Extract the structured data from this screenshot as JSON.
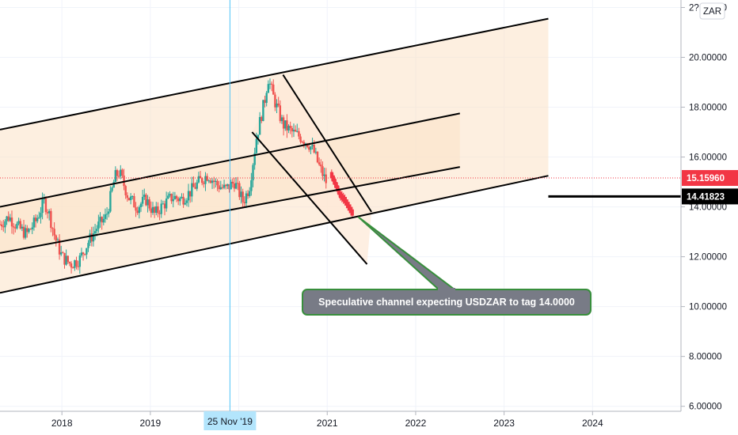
{
  "chart_data": {
    "type": "candlestick",
    "symbol": "USDZAR",
    "currency_label": "ZAR",
    "price_scale": {
      "ticks": [
        "2?.00000",
        "20.00000",
        "18.00000",
        "16.00000",
        "14.00000",
        "12.00000",
        "10.00000",
        "8.00000",
        "6.00000"
      ],
      "tick_values": [
        22,
        20,
        18,
        16,
        14,
        12,
        10,
        8,
        6
      ],
      "ylim": [
        5.8,
        22.3
      ]
    },
    "time_scale": {
      "ticks": [
        "2018",
        "2019",
        "2021",
        "2022",
        "2023",
        "2024"
      ],
      "tick_values": [
        2018.0,
        2019.0,
        2021.0,
        2022.0,
        2023.0,
        2024.0
      ],
      "xlim": [
        2017.3,
        2025.0
      ]
    },
    "last_price": {
      "label": "15.15960",
      "value": 15.1596,
      "color": "#f23645"
    },
    "marked_level": {
      "label": "14.41823",
      "value": 14.41823,
      "from": 2023.5,
      "color": "#000000"
    },
    "crosshair": {
      "label": "25 Nov '19",
      "x": 2019.9,
      "color": "#4fc3f7"
    },
    "channels": [
      {
        "name": "outer",
        "x1": 2017.3,
        "y1_lower": 10.55,
        "y1_upper": 17.1,
        "x2": 2023.5,
        "y2_lower": 15.25,
        "y2_upper": 21.55,
        "fill": "#fbe1c6"
      },
      {
        "name": "inner",
        "x1": 2017.3,
        "y1_lower": 12.15,
        "y1_upper": 14.0,
        "x2": 2022.5,
        "y2_lower": 15.6,
        "y2_upper": 17.75,
        "fill": "#fbe1c6"
      }
    ],
    "falling_channel": {
      "upper": [
        [
          2020.5,
          19.3
        ],
        [
          2021.5,
          13.8
        ]
      ],
      "lower": [
        [
          2020.15,
          17.0
        ],
        [
          2021.45,
          11.7
        ]
      ],
      "fill": "#fde8d6"
    },
    "annotation": {
      "text": "Speculative channel expecting USDZAR to tag 14.0000",
      "bg": "#787b86",
      "border": "#388e3c",
      "arrow_to": [
        2021.35,
        13.6
      ]
    },
    "prices": [
      [
        2017.3,
        13.3
      ],
      [
        2017.4,
        13.6
      ],
      [
        2017.5,
        13.2
      ],
      [
        2017.6,
        12.9
      ],
      [
        2017.7,
        13.4
      ],
      [
        2017.8,
        14.2
      ],
      [
        2017.85,
        13.8
      ],
      [
        2017.92,
        12.8
      ],
      [
        2018.0,
        12.0
      ],
      [
        2018.1,
        11.7
      ],
      [
        2018.2,
        11.9
      ],
      [
        2018.3,
        12.6
      ],
      [
        2018.4,
        13.2
      ],
      [
        2018.5,
        13.6
      ],
      [
        2018.6,
        15.2
      ],
      [
        2018.65,
        15.4
      ],
      [
        2018.75,
        14.4
      ],
      [
        2018.85,
        14.0
      ],
      [
        2018.95,
        14.3
      ],
      [
        2019.05,
        13.7
      ],
      [
        2019.15,
        14.1
      ],
      [
        2019.25,
        14.4
      ],
      [
        2019.35,
        14.3
      ],
      [
        2019.45,
        14.6
      ],
      [
        2019.55,
        15.0
      ],
      [
        2019.65,
        15.3
      ],
      [
        2019.75,
        14.9
      ],
      [
        2019.85,
        14.7
      ],
      [
        2019.95,
        15.0
      ],
      [
        2020.05,
        14.2
      ],
      [
        2020.12,
        14.8
      ],
      [
        2020.2,
        16.8
      ],
      [
        2020.3,
        18.4
      ],
      [
        2020.33,
        19.2
      ],
      [
        2020.4,
        18.3
      ],
      [
        2020.5,
        17.3
      ],
      [
        2020.6,
        17.0
      ],
      [
        2020.7,
        16.8
      ],
      [
        2020.8,
        16.5
      ],
      [
        2020.85,
        16.2
      ],
      [
        2020.9,
        15.7
      ],
      [
        2020.95,
        15.3
      ],
      [
        2021.0,
        14.9
      ],
      [
        2021.05,
        15.3
      ],
      [
        2021.1,
        14.7
      ],
      [
        2021.15,
        14.5
      ],
      [
        2021.2,
        14.4
      ],
      [
        2021.25,
        14.2
      ],
      [
        2021.3,
        13.9
      ]
    ],
    "projection": {
      "values": [
        [
          2021.05,
          15.4
        ],
        [
          2021.1,
          15.0
        ],
        [
          2021.15,
          14.6
        ],
        [
          2021.2,
          14.4
        ],
        [
          2021.25,
          14.1
        ],
        [
          2021.3,
          13.8
        ]
      ],
      "color": "#f23645"
    }
  }
}
